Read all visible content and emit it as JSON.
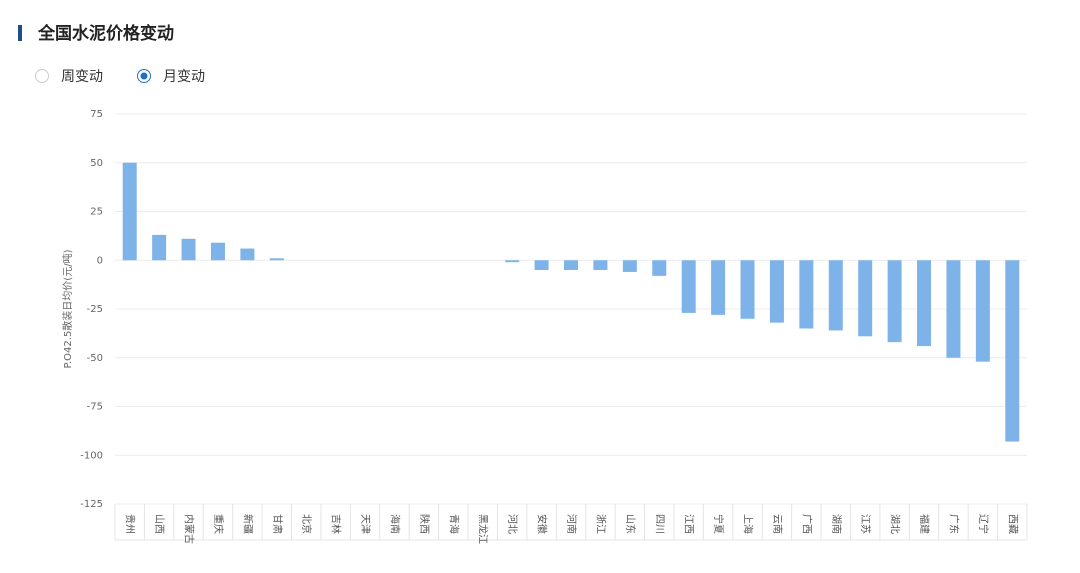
{
  "header": {
    "title": "全国水泥价格变动"
  },
  "radios": [
    {
      "label": "周变动",
      "selected": false
    },
    {
      "label": "月变动",
      "selected": true
    }
  ],
  "chart_data": {
    "type": "bar",
    "y_label": "P.O42.5散装日均价(元/吨)",
    "categories": [
      "贵州",
      "山西",
      "内蒙古",
      "重庆",
      "新疆",
      "甘肃",
      "北京",
      "吉林",
      "天津",
      "海南",
      "陕西",
      "青海",
      "黑龙江",
      "河北",
      "安徽",
      "河南",
      "浙江",
      "山东",
      "四川",
      "江西",
      "宁夏",
      "上海",
      "云南",
      "广西",
      "湖南",
      "江苏",
      "湖北",
      "福建",
      "广东",
      "辽宁",
      "西藏"
    ],
    "values": [
      50,
      13,
      11,
      9,
      6,
      1,
      0,
      0,
      0,
      0,
      0,
      0,
      0,
      -1,
      -5,
      -5,
      -5,
      -6,
      -8,
      -27,
      -28,
      -30,
      -32,
      -35,
      -36,
      -39,
      -42,
      -44,
      -50,
      -52,
      -93
    ],
    "color": "#7db3e8",
    "ylim": [
      -125,
      75
    ],
    "yticks": [
      -125,
      -100,
      -75,
      -50,
      -25,
      0,
      25,
      50,
      75
    ],
    "grid": true
  }
}
